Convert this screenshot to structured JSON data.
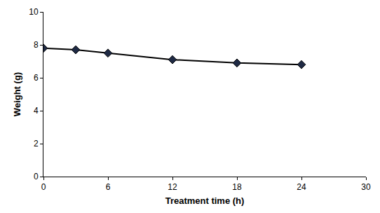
{
  "chart_data": {
    "type": "line",
    "x_label": "Treatment time (h)",
    "y_label": "Weight (g)",
    "x": [
      0,
      3,
      6,
      12,
      18,
      24
    ],
    "values": [
      7.8,
      7.7,
      7.5,
      7.1,
      6.9,
      6.8
    ],
    "color": "#000000",
    "marker": "diamond",
    "line_style": "solid",
    "xlim": [
      0,
      30
    ],
    "xticks": [
      0,
      6,
      12,
      18,
      24,
      30
    ],
    "ylim": [
      0,
      10
    ],
    "yticks": [
      0,
      2,
      4,
      6,
      8,
      10
    ],
    "grid": false
  }
}
